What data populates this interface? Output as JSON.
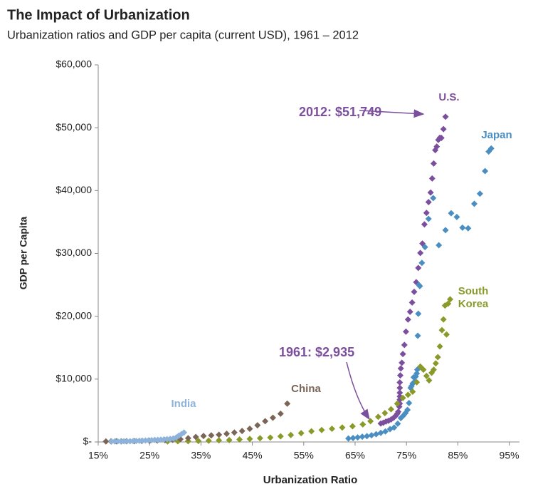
{
  "chart_data": {
    "type": "scatter",
    "title": "The Impact of Urbanization",
    "subtitle": "Urbanization ratios and GDP per capita (current USD), 1961 – 2012",
    "x_label": "Urbanization Ratio",
    "y_label": "GDP per Capita",
    "xlim": [
      15,
      97
    ],
    "ylim": [
      0,
      60000
    ],
    "xticks": [
      {
        "value": 15,
        "label": "15%"
      },
      {
        "value": 25,
        "label": "25%"
      },
      {
        "value": 35,
        "label": "35%"
      },
      {
        "value": 45,
        "label": "45%"
      },
      {
        "value": 55,
        "label": "55%"
      },
      {
        "value": 65,
        "label": "65%"
      },
      {
        "value": 75,
        "label": "75%"
      },
      {
        "value": 85,
        "label": "85%"
      },
      {
        "value": 95,
        "label": "95%"
      }
    ],
    "yticks": [
      {
        "value": 0,
        "label": "$-"
      },
      {
        "value": 10000,
        "label": "$10,000"
      },
      {
        "value": 20000,
        "label": "$20,000"
      },
      {
        "value": 30000,
        "label": "$30,000"
      },
      {
        "value": 40000,
        "label": "$40,000"
      },
      {
        "value": 50000,
        "label": "$50,000"
      },
      {
        "value": 60000,
        "label": "$60,000"
      }
    ],
    "annotations": [
      {
        "text": "2012: $51,749"
      },
      {
        "text": "1961: $2,935"
      }
    ],
    "series": [
      {
        "name": "U.S.",
        "color": "#7b4f9e",
        "x": [
          70.0,
          70.5,
          71.0,
          71.5,
          72.0,
          72.5,
          72.9,
          73.2,
          73.4,
          73.6,
          73.7,
          73.7,
          73.7,
          73.7,
          73.7,
          73.7,
          73.8,
          73.9,
          74.1,
          74.3,
          74.6,
          74.9,
          75.3,
          75.7,
          76.1,
          76.5,
          76.9,
          77.3,
          77.7,
          78.1,
          78.5,
          78.9,
          79.3,
          79.7,
          80.0,
          80.3,
          80.6,
          80.9,
          81.2,
          81.5,
          81.8,
          82.2,
          82.6
        ],
        "values": [
          2935,
          3066,
          3243,
          3374,
          3575,
          3863,
          4147,
          4491,
          4803,
          5609,
          6109,
          6741,
          7242,
          7820,
          8611,
          9471,
          10587,
          11695,
          12598,
          13993,
          15438,
          17551,
          19485,
          20708,
          22192,
          23889,
          25419,
          27695,
          30067,
          31573,
          34621,
          36450,
          38166,
          39677,
          41922,
          44308,
          46437,
          47002,
          48062,
          48401,
          48374,
          49782,
          51749
        ]
      },
      {
        "name": "Japan",
        "color": "#4a8ec2",
        "x": [
          63.7,
          64.6,
          65.5,
          66.4,
          67.3,
          68.2,
          69.1,
          70.0,
          70.9,
          71.8,
          72.6,
          73.3,
          73.9,
          74.4,
          74.8,
          75.2,
          75.5,
          75.8,
          76.0,
          76.2,
          76.4,
          76.6,
          76.8,
          77.0,
          77.1,
          77.2,
          77.3,
          77.4,
          77.6,
          78.0,
          78.6,
          79.3,
          80.2,
          81.3,
          82.6,
          83.7,
          84.8,
          85.9,
          87.0,
          88.2,
          89.3,
          90.3,
          91.0,
          91.5
        ],
        "values": [
          560,
          630,
          720,
          830,
          920,
          1060,
          1230,
          1450,
          1670,
          2040,
          2300,
          2900,
          3800,
          4200,
          4600,
          5100,
          6200,
          8600,
          8900,
          9300,
          10300,
          9600,
          10400,
          10900,
          11500,
          16900,
          20400,
          25000,
          24800,
          28500,
          31000,
          35500,
          38800,
          31300,
          33700,
          36400,
          35800,
          34100,
          34000,
          37900,
          39500,
          43100,
          46200,
          46700
        ]
      },
      {
        "name": "South Korea",
        "color": "#8a9a2a",
        "x": [
          28.5,
          30.5,
          32.5,
          34.5,
          36.5,
          38.5,
          40.5,
          42.5,
          44.5,
          46.5,
          48.5,
          50.5,
          52.5,
          54.5,
          56.5,
          58.5,
          60.5,
          62.5,
          64.5,
          66.5,
          68.0,
          69.5,
          70.8,
          72.0,
          73.2,
          74.3,
          75.3,
          76.2,
          77.0,
          77.7,
          78.3,
          78.9,
          79.4,
          79.9,
          80.3,
          80.7,
          81.1,
          81.5,
          81.9,
          82.2,
          82.5,
          82.8,
          83.1,
          83.5
        ],
        "values": [
          90,
          110,
          130,
          160,
          200,
          250,
          300,
          400,
          480,
          600,
          700,
          900,
          1100,
          1400,
          1700,
          1900,
          2100,
          2300,
          2500,
          2800,
          3300,
          4000,
          4600,
          5200,
          6100,
          7000,
          7500,
          8000,
          9500,
          12000,
          11500,
          10500,
          9800,
          11000,
          11500,
          12500,
          13500,
          15200,
          17800,
          19500,
          21700,
          17100,
          22000,
          22700
        ]
      },
      {
        "name": "China",
        "color": "#7a6557",
        "x": [
          16.5,
          17.5,
          18.5,
          19.5,
          20.5,
          22.0,
          23.5,
          25.0,
          26.5,
          28.0,
          29.5,
          31.0,
          32.5,
          34.0,
          35.5,
          37.0,
          38.5,
          40.0,
          41.5,
          43.0,
          44.5,
          46.0,
          47.5,
          49.0,
          50.5,
          51.8
        ],
        "values": [
          90,
          95,
          100,
          105,
          110,
          130,
          160,
          190,
          220,
          280,
          340,
          440,
          600,
          800,
          950,
          1050,
          1150,
          1300,
          1500,
          1750,
          2100,
          2650,
          3300,
          3850,
          4500,
          6100
        ]
      },
      {
        "name": "India",
        "color": "#8db3dc",
        "x": [
          17.6,
          18.2,
          18.8,
          19.4,
          20.0,
          20.6,
          21.2,
          21.8,
          22.4,
          23.0,
          23.6,
          24.2,
          24.8,
          25.4,
          26.0,
          26.6,
          27.2,
          27.8,
          28.4,
          29.0,
          29.6,
          30.2,
          30.7,
          31.2,
          31.7
        ],
        "values": [
          85,
          90,
          95,
          100,
          110,
          115,
          120,
          140,
          160,
          180,
          200,
          230,
          260,
          290,
          320,
          340,
          370,
          400,
          440,
          480,
          560,
          720,
          1000,
          1250,
          1500
        ]
      }
    ]
  }
}
